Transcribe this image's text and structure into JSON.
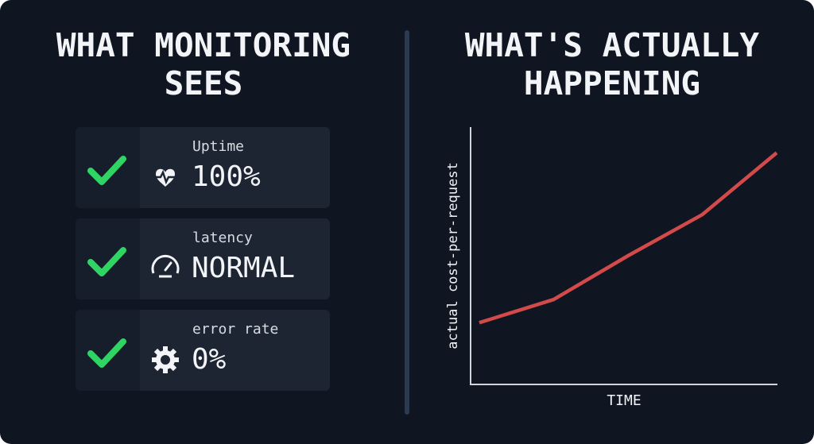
{
  "left": {
    "title": [
      "WHAT MONITORING",
      "SEES"
    ],
    "cards": [
      {
        "label": "Uptime",
        "value": "100%"
      },
      {
        "label": "latency",
        "value": "NORMAL"
      },
      {
        "label": "error rate",
        "value": "0%"
      }
    ]
  },
  "chart_data": {
    "type": "line",
    "title": [
      "WHAT'S ACTUALLY",
      "HAPPENING"
    ],
    "y_label": "actual cost-per-request",
    "x_label": "TIME",
    "categories": [
      null,
      null,
      null,
      null,
      null
    ],
    "values": [
      24,
      33,
      50,
      66,
      90
    ],
    "color": "#d24a4a",
    "ylim": [
      0,
      100
    ]
  }
}
